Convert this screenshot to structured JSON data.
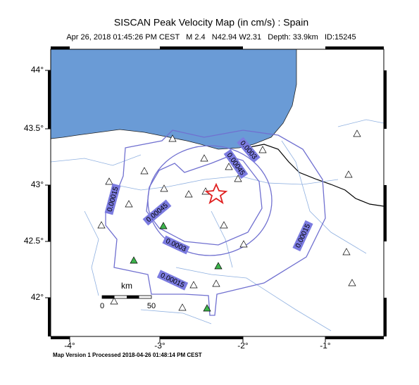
{
  "title": "SISCAN Peak Velocity Map (in cm/s) : Spain",
  "subtitle": "Apr 26, 2018 01:45:26 PM CEST   M 2.4   N42.94 W2.31   Depth: 33.9km   ID:15245",
  "footer": "Map Version 1 Processed 2018-04-26 01:48:14 PM CEST",
  "axes": {
    "lat_labels": [
      "44°",
      "43.5°",
      "43°",
      "42.5°",
      "42°"
    ],
    "lon_labels": [
      "-4°",
      "-3°",
      "-2°",
      "-1°"
    ]
  },
  "contour_labels": [
    "0.00015",
    "0.00045",
    "0.0003",
    "0.00015",
    "0.00015",
    "0.00045",
    "0.0003"
  ],
  "scale_bar": {
    "unit": "km",
    "start": "0",
    "end": "50"
  }
}
